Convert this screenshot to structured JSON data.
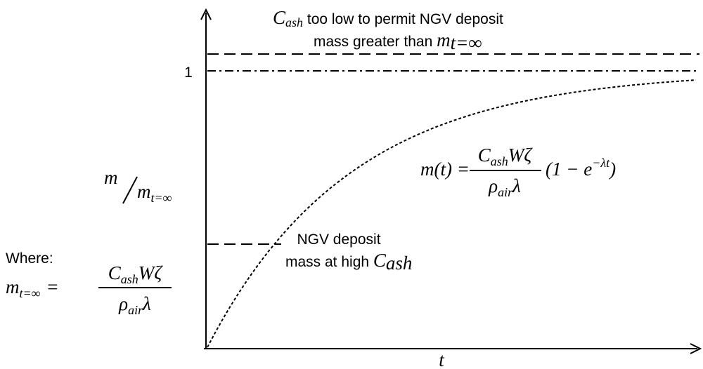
{
  "y_tick": "1",
  "x_label": "t",
  "y_label": {
    "num": "m",
    "den": "m",
    "den_sub": "t=∞"
  },
  "top_note": {
    "line1_var": "C",
    "line1_sub": "ash",
    "line1_text": " too low to permit NGV deposit",
    "line2_text": "mass greater than ",
    "line2_var": "m",
    "line2_sub": "t=∞"
  },
  "mid_note": {
    "line1": "NGV deposit",
    "line2_text": "mass at high ",
    "line2_var": "C",
    "line2_sub": "ash"
  },
  "equation": {
    "lhs": "m(t) =",
    "num_var": "C",
    "num_sub": "ash",
    "num_rest": "Wζ",
    "den_var": "ρ",
    "den_sub": "air",
    "den_rest": "λ",
    "paren": "(1 − e",
    "exp": "−λt",
    "close": ")"
  },
  "where": {
    "label": "Where:",
    "lhs_var": "m",
    "lhs_sub": "t=∞",
    "eq": "=",
    "num_var": "C",
    "num_sub": "ash",
    "num_rest": "Wζ",
    "den_var": "ρ",
    "den_sub": "air",
    "den_rest": "λ"
  }
}
